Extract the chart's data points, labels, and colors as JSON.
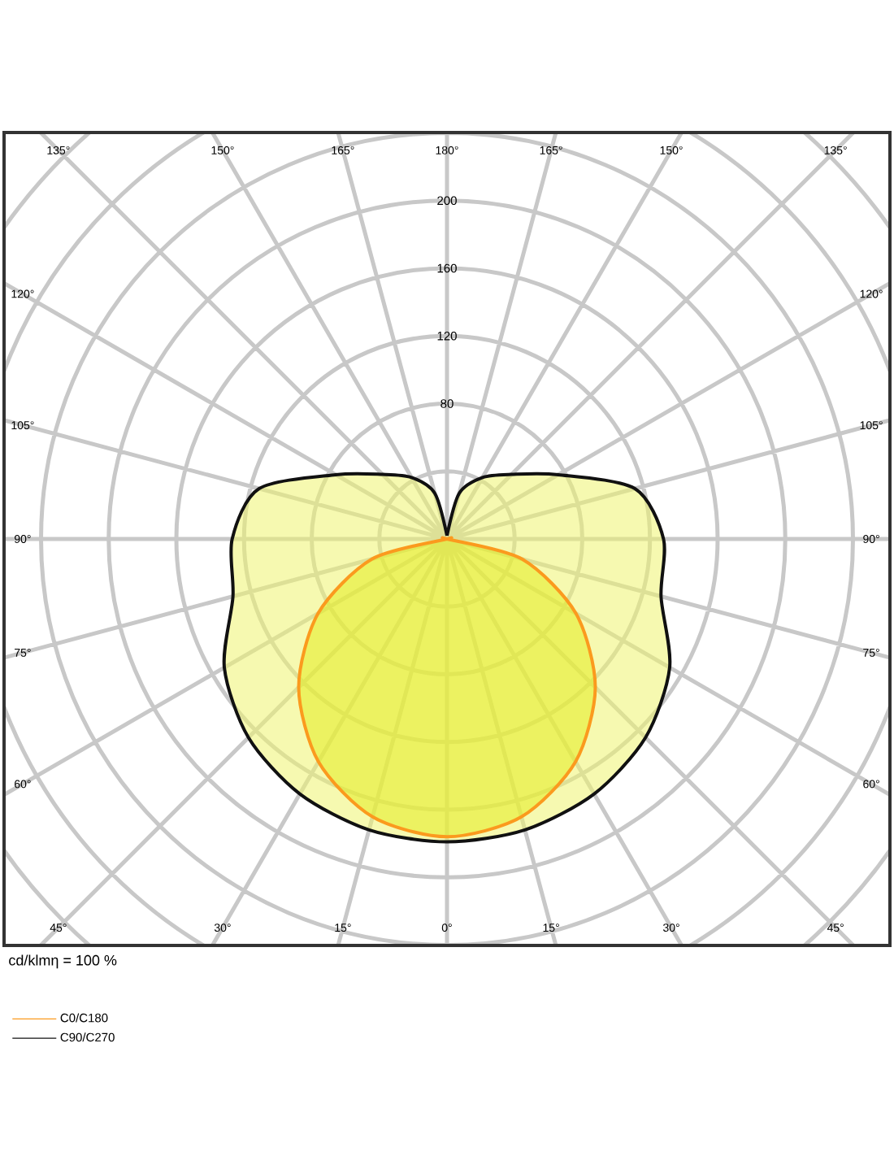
{
  "chart_data": {
    "type": "radar",
    "categories": [
      "180°",
      "165°",
      "150°",
      "135°",
      "120°",
      "105°",
      "90°",
      "75°",
      "60°",
      "45°",
      "30°",
      "15°",
      "0°",
      "15°",
      "30°",
      "45°",
      "60°",
      "75°",
      "90°",
      "105°",
      "120°",
      "135°",
      "150°",
      "165°"
    ],
    "series": [
      {
        "name": "C0/C180",
        "color": "#fb9a1e",
        "values": [
          0,
          0,
          0,
          0,
          0,
          0,
          0,
          46,
          88,
          124,
          152,
          170,
          176,
          170,
          152,
          124,
          88,
          46,
          0,
          0,
          0,
          0,
          0,
          0
        ]
      },
      {
        "name": "C90/C270",
        "color": "#111111",
        "values": [
          2,
          28,
          42,
          54,
          76,
          115,
          128,
          131,
          152,
          166,
          174,
          178,
          179,
          178,
          174,
          166,
          152,
          131,
          127,
          115,
          76,
          54,
          42,
          28
        ]
      }
    ],
    "ylim": [
      0,
      320
    ],
    "yticks": [
      80,
      120,
      160,
      200
    ],
    "grid": true,
    "legend": "bottom left",
    "annotations": [
      "cd/klmη = 100 %"
    ]
  }
}
